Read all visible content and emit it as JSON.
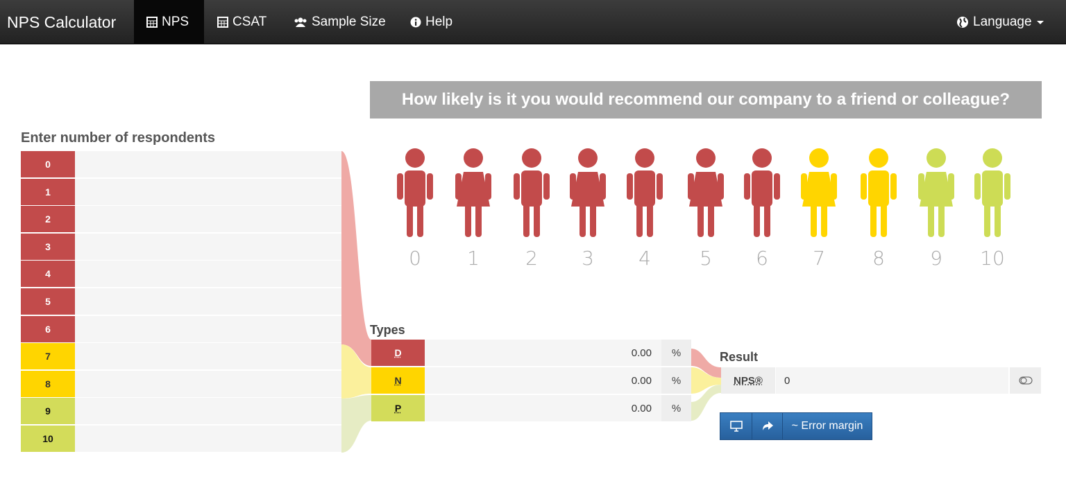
{
  "navbar": {
    "brand": "NPS Calculator",
    "items": [
      "NPS",
      "CSAT",
      "Sample Size",
      "Help"
    ],
    "language": "Language"
  },
  "question": "How likely is it you would recommend our company to a friend or colleague?",
  "scale": [
    "0",
    "1",
    "2",
    "3",
    "4",
    "5",
    "6",
    "7",
    "8",
    "9",
    "10"
  ],
  "respondents": {
    "title": "Enter number of respondents",
    "rows": [
      "0",
      "1",
      "2",
      "3",
      "4",
      "5",
      "6",
      "7",
      "8",
      "9",
      "10"
    ]
  },
  "types": {
    "title": "Types",
    "rows": [
      {
        "label": "D",
        "value": "0.00",
        "unit": "%"
      },
      {
        "label": "N",
        "value": "0.00",
        "unit": "%"
      },
      {
        "label": "P",
        "value": "0.00",
        "unit": "%"
      }
    ]
  },
  "result": {
    "title": "Result",
    "label": "NPS®",
    "value": "0",
    "button": "~ Error margin"
  }
}
